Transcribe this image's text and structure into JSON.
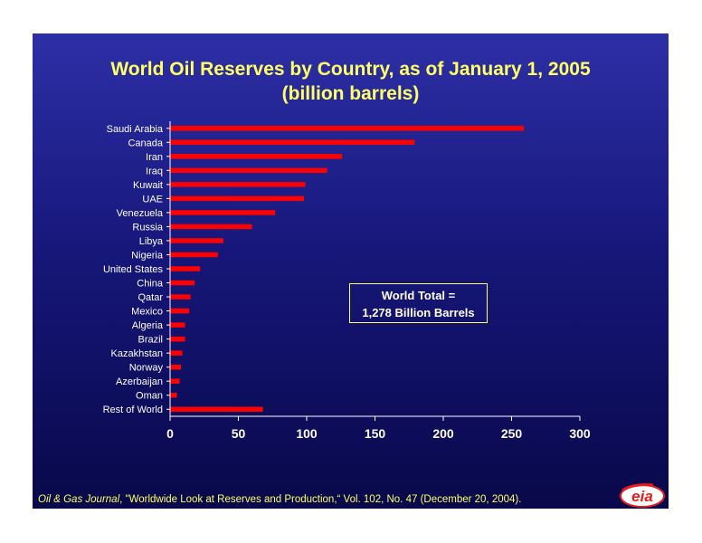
{
  "chart_data": {
    "type": "bar",
    "orientation": "horizontal",
    "title": "World Oil Reserves by Country, as of January 1, 2005",
    "subtitle": "(billion barrels)",
    "categories": [
      "Saudi Arabia",
      "Canada",
      "Iran",
      "Iraq",
      "Kuwait",
      "UAE",
      "Venezuela",
      "Russia",
      "Libya",
      "Nigeria",
      "United States",
      "China",
      "Qatar",
      "Mexico",
      "Algeria",
      "Brazil",
      "Kazakhstan",
      "Norway",
      "Azerbaijan",
      "Oman",
      "Rest of World"
    ],
    "values": [
      259,
      179,
      126,
      115,
      99,
      98,
      77,
      60,
      39,
      35,
      22,
      18,
      15,
      14,
      11,
      11,
      9,
      8,
      7,
      5,
      68
    ],
    "xlim": [
      0,
      300
    ],
    "xticks": [
      0,
      50,
      100,
      150,
      200,
      250,
      300
    ],
    "grid": false,
    "colors": {
      "bar": "#ff0000",
      "axis": "#ffffff",
      "title": "#ffff66"
    },
    "annotation": {
      "line1": "World Total =",
      "line2": "1,278 Billion Barrels"
    }
  },
  "source": {
    "journal": "Oil & Gas Journal",
    "citation": ", \"Worldwide Look at Reserves and Production,“ Vol. 102, No. 47 (December 20, 2004)."
  },
  "logo": {
    "text": "eia",
    "icon": "eia-logo-icon",
    "color": "#e81c1c"
  }
}
